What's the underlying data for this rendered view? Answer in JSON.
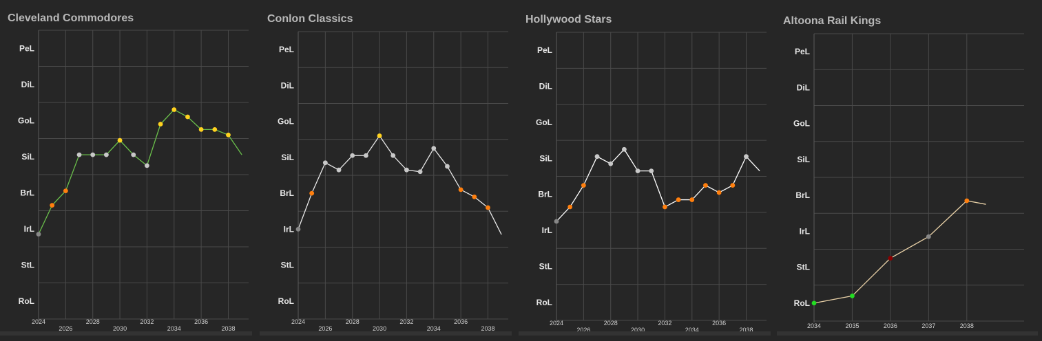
{
  "chart_data": [
    {
      "type": "line",
      "title": "Cleveland Commodores",
      "y_categories": [
        "RoL",
        "StL",
        "IrL",
        "BrL",
        "SiL",
        "GoL",
        "DiL",
        "PeL"
      ],
      "x_ticks": [
        2024,
        2026,
        2028,
        2030,
        2032,
        2034,
        2036,
        2038
      ],
      "xlim": [
        2024,
        2039.5
      ],
      "line_color": "#6abf4b",
      "grid": true,
      "series": [
        {
          "x": [
            2024,
            2025,
            2026,
            2027,
            2028,
            2029,
            2030,
            2031,
            2032,
            2033,
            2034,
            2035,
            2036,
            2037,
            2038
          ],
          "y": [
            2.85,
            3.65,
            4.05,
            5.05,
            5.05,
            5.05,
            5.45,
            5.05,
            4.75,
            5.9,
            6.3,
            6.1,
            5.75,
            5.75,
            5.6
          ],
          "marker_colors": [
            "#888888",
            "#ff7f0e",
            "#ff7f0e",
            "#c8c8c8",
            "#c8c8c8",
            "#c8c8c8",
            "#ffd21f",
            "#c8c8c8",
            "#c8c8c8",
            "#ffd21f",
            "#ffd21f",
            "#ffd21f",
            "#ffd21f",
            "#ffd21f",
            "#ffd21f"
          ],
          "trail_to": [
            2039,
            5.05
          ]
        }
      ]
    },
    {
      "type": "line",
      "title": "Conlon Classics",
      "y_categories": [
        "RoL",
        "StL",
        "IrL",
        "BrL",
        "SiL",
        "GoL",
        "DiL",
        "PeL"
      ],
      "x_ticks": [
        2024,
        2026,
        2028,
        2030,
        2032,
        2034,
        2036,
        2038
      ],
      "xlim": [
        2024,
        2039.5
      ],
      "line_color": "#e8e8e8",
      "grid": true,
      "series": [
        {
          "x": [
            2024,
            2025,
            2026,
            2027,
            2028,
            2029,
            2030,
            2031,
            2032,
            2033,
            2034,
            2035,
            2036,
            2037,
            2038
          ],
          "y": [
            3.0,
            4.0,
            4.85,
            4.65,
            5.05,
            5.05,
            5.6,
            5.05,
            4.65,
            4.6,
            5.25,
            4.75,
            4.1,
            3.9,
            3.6
          ],
          "marker_colors": [
            "#888888",
            "#ff7f0e",
            "#c8c8c8",
            "#c8c8c8",
            "#c8c8c8",
            "#c8c8c8",
            "#ffd21f",
            "#c8c8c8",
            "#c8c8c8",
            "#c8c8c8",
            "#c8c8c8",
            "#c8c8c8",
            "#ff7f0e",
            "#ff7f0e",
            "#ff7f0e"
          ],
          "trail_to": [
            2039,
            2.85
          ]
        }
      ]
    },
    {
      "type": "line",
      "title": "Hollywood Stars",
      "y_categories": [
        "RoL",
        "StL",
        "IrL",
        "BrL",
        "SiL",
        "GoL",
        "DiL",
        "PeL"
      ],
      "x_ticks": [
        2024,
        2026,
        2028,
        2030,
        2032,
        2034,
        2036,
        2038
      ],
      "xlim": [
        2024,
        2039.5
      ],
      "line_color": "#ffffff",
      "grid": true,
      "series": [
        {
          "x": [
            2024,
            2025,
            2026,
            2027,
            2028,
            2029,
            2030,
            2031,
            2032,
            2033,
            2034,
            2035,
            2036,
            2037,
            2038
          ],
          "y": [
            3.25,
            3.65,
            4.25,
            5.05,
            4.85,
            5.25,
            4.65,
            4.65,
            3.65,
            3.85,
            3.85,
            4.25,
            4.05,
            4.25,
            5.05
          ],
          "marker_colors": [
            "#888888",
            "#ff7f0e",
            "#ff7f0e",
            "#c8c8c8",
            "#c8c8c8",
            "#c8c8c8",
            "#c8c8c8",
            "#c8c8c8",
            "#ff7f0e",
            "#ff7f0e",
            "#ff7f0e",
            "#ff7f0e",
            "#ff7f0e",
            "#ff7f0e",
            "#c8c8c8"
          ],
          "trail_to": [
            2039,
            4.65
          ]
        }
      ]
    },
    {
      "type": "line",
      "title": "Altoona Rail Kings",
      "y_categories": [
        "RoL",
        "StL",
        "IrL",
        "BrL",
        "SiL",
        "GoL",
        "DiL",
        "PeL"
      ],
      "x_ticks": [
        2034,
        2035,
        2036,
        2037,
        2038
      ],
      "xlim": [
        2034,
        2039.5
      ],
      "line_color": "#ead2a8",
      "grid": true,
      "series": [
        {
          "x": [
            2034,
            2035,
            2036,
            2037,
            2038
          ],
          "y": [
            1.0,
            1.2,
            2.25,
            2.85,
            3.85
          ],
          "marker_colors": [
            "#22dd22",
            "#22dd22",
            "#8b0000",
            "#888888",
            "#ff7f0e"
          ],
          "trail_to": [
            2038.5,
            3.75
          ]
        }
      ]
    }
  ]
}
